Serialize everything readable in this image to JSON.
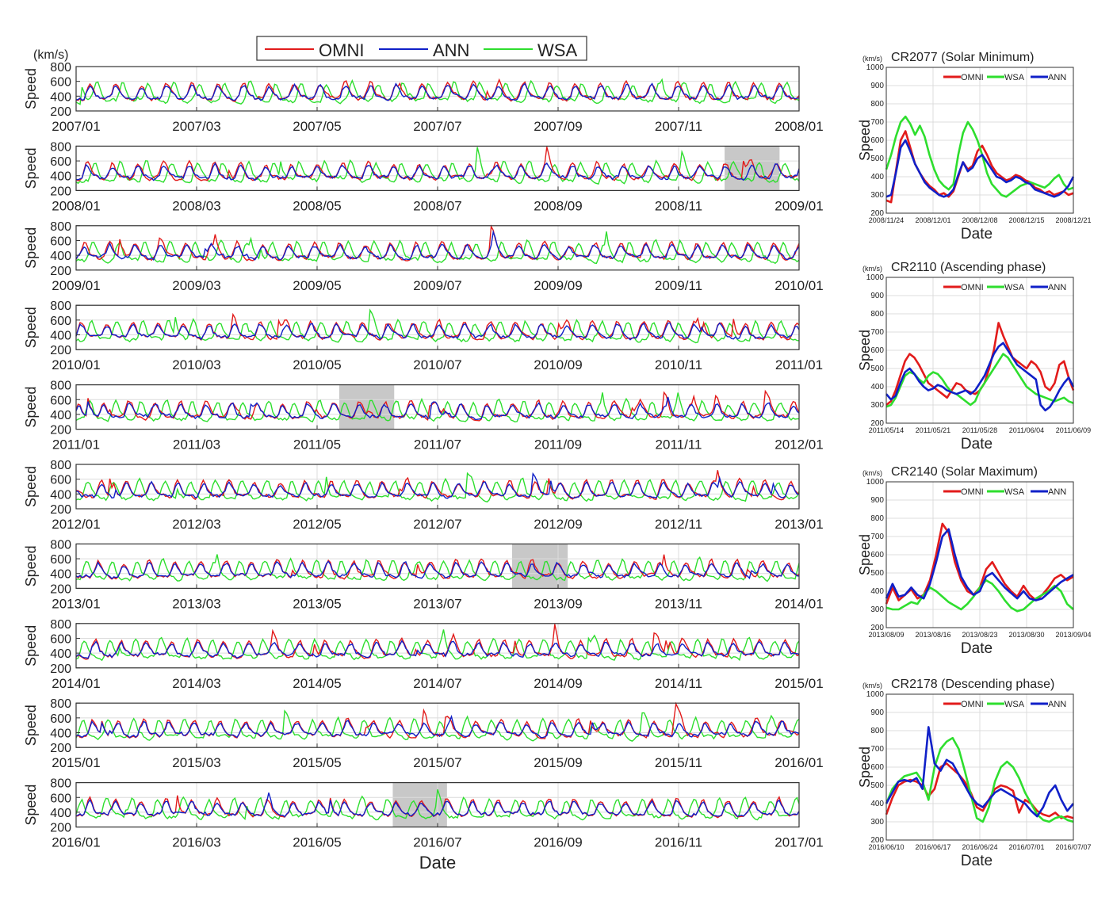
{
  "colors": {
    "OMNI": "#e21b1b",
    "ANN": "#1020c8",
    "WSA": "#2ede2e",
    "shade": "#c8c8c8",
    "grid": "#dcdcdc"
  },
  "legend_main": [
    "OMNI",
    "ANN",
    "WSA"
  ],
  "legend_side": [
    "OMNI",
    "WSA",
    "ANN"
  ],
  "main_unit": "(km/s)",
  "side_unit": "(km/s)",
  "main_ylabel": "Speed",
  "main_xlabel": "Date",
  "side_ylabel": "Speed",
  "side_xlabel": "Date",
  "chart_data": [
    {
      "type": "line",
      "panel": "main",
      "years": [
        "2007",
        "2008",
        "2009",
        "2010",
        "2011",
        "2012",
        "2013",
        "2014",
        "2015",
        "2016"
      ],
      "month_ticks": [
        "01",
        "03",
        "05",
        "07",
        "09",
        "11"
      ],
      "xlabel": "Date",
      "ylabel": "Speed",
      "unit": "(km/s)",
      "ylim": [
        200,
        800
      ],
      "yticks": [
        200,
        400,
        600,
        800
      ],
      "grid": true,
      "legend": "top-center",
      "series": [
        {
          "name": "OMNI",
          "values_note": "daily solar wind speed, km/s"
        },
        {
          "name": "ANN"
        },
        {
          "name": "WSA"
        }
      ],
      "shaded_intervals": [
        {
          "start": "2008/11/24",
          "end": "2008/12/21"
        },
        {
          "start": "2011/05/14",
          "end": "2011/06/10"
        },
        {
          "start": "2013/08/09",
          "end": "2013/09/05"
        },
        {
          "start": "2016/06/10",
          "end": "2016/07/07"
        }
      ]
    },
    {
      "type": "line",
      "title": "CR2077  (Solar Minimum)",
      "xticks": [
        "2008/11/24",
        "2008/12/01",
        "2008/12/08",
        "2008/12/15",
        "2008/12/21"
      ],
      "xlabel": "Date",
      "ylabel": "Speed",
      "unit": "(km/s)",
      "ylim": [
        200,
        1000
      ],
      "yticks": [
        200,
        300,
        400,
        500,
        600,
        700,
        800,
        900,
        1000
      ],
      "legend": "top-right",
      "series": [
        {
          "name": "OMNI",
          "values": [
            270,
            260,
            430,
            600,
            650,
            560,
            470,
            420,
            380,
            350,
            330,
            300,
            310,
            290,
            320,
            400,
            480,
            440,
            460,
            540,
            570,
            520,
            460,
            420,
            400,
            380,
            390,
            410,
            400,
            380,
            370,
            340,
            330,
            310,
            320,
            300,
            310,
            320,
            300,
            310
          ]
        },
        {
          "name": "WSA",
          "values": [
            440,
            520,
            620,
            700,
            730,
            690,
            630,
            680,
            620,
            520,
            440,
            380,
            350,
            330,
            360,
            520,
            640,
            700,
            660,
            600,
            520,
            420,
            360,
            330,
            300,
            290,
            310,
            330,
            350,
            360,
            370,
            360,
            350,
            340,
            360,
            390,
            410,
            360,
            330,
            340
          ]
        },
        {
          "name": "ANN",
          "values": [
            290,
            300,
            420,
            560,
            600,
            540,
            470,
            420,
            370,
            340,
            320,
            300,
            290,
            300,
            330,
            410,
            480,
            430,
            450,
            500,
            520,
            480,
            440,
            400,
            390,
            370,
            380,
            400,
            390,
            370,
            360,
            330,
            320,
            310,
            300,
            290,
            300,
            320,
            350,
            400
          ]
        }
      ]
    },
    {
      "type": "line",
      "title": "CR2110  (Ascending phase)",
      "xticks": [
        "2011/05/14",
        "2011/05/21",
        "2011/05/28",
        "2011/06/04",
        "2011/06/09"
      ],
      "xlabel": "Date",
      "ylabel": "Speed",
      "unit": "(km/s)",
      "ylim": [
        200,
        1000
      ],
      "yticks": [
        200,
        300,
        400,
        500,
        600,
        700,
        800,
        900,
        1000
      ],
      "legend": "top-right",
      "series": [
        {
          "name": "OMNI",
          "values": [
            300,
            320,
            380,
            460,
            540,
            580,
            560,
            520,
            470,
            420,
            400,
            380,
            360,
            340,
            380,
            420,
            410,
            380,
            370,
            360,
            380,
            420,
            500,
            600,
            750,
            680,
            620,
            560,
            540,
            520,
            500,
            540,
            520,
            480,
            400,
            380,
            420,
            520,
            540,
            450,
            380
          ]
        },
        {
          "name": "WSA",
          "values": [
            290,
            300,
            340,
            400,
            460,
            480,
            470,
            440,
            420,
            460,
            480,
            470,
            440,
            400,
            370,
            360,
            340,
            320,
            300,
            320,
            380,
            420,
            460,
            500,
            540,
            580,
            560,
            520,
            480,
            440,
            400,
            380,
            360,
            350,
            340,
            330,
            320,
            330,
            340,
            320,
            310
          ]
        },
        {
          "name": "ANN",
          "values": [
            360,
            330,
            350,
            420,
            480,
            500,
            470,
            430,
            400,
            380,
            390,
            410,
            400,
            380,
            370,
            360,
            370,
            380,
            360,
            380,
            420,
            460,
            520,
            580,
            620,
            640,
            600,
            560,
            520,
            500,
            480,
            460,
            440,
            300,
            270,
            290,
            330,
            380,
            420,
            450,
            400
          ]
        }
      ]
    },
    {
      "type": "line",
      "title": "CR2140  (Solar Maximum)",
      "xticks": [
        "2013/08/09",
        "2013/08/16",
        "2013/08/23",
        "2013/08/30",
        "2013/09/04"
      ],
      "xlabel": "Date",
      "ylabel": "Speed",
      "unit": "(km/s)",
      "ylim": [
        200,
        1000
      ],
      "yticks": [
        200,
        300,
        400,
        500,
        600,
        700,
        800,
        900,
        1000
      ],
      "legend": "top-right",
      "series": [
        {
          "name": "OMNI",
          "values": [
            330,
            420,
            350,
            380,
            410,
            360,
            380,
            460,
            600,
            770,
            720,
            560,
            460,
            400,
            380,
            420,
            520,
            560,
            500,
            440,
            400,
            370,
            430,
            380,
            350,
            380,
            420,
            470,
            490,
            460,
            480
          ]
        },
        {
          "name": "WSA",
          "values": [
            310,
            300,
            300,
            320,
            340,
            330,
            380,
            420,
            400,
            370,
            340,
            320,
            300,
            330,
            370,
            420,
            460,
            440,
            400,
            350,
            310,
            290,
            300,
            330,
            360,
            380,
            400,
            430,
            400,
            330,
            300
          ]
        },
        {
          "name": "ANN",
          "values": [
            360,
            440,
            370,
            380,
            420,
            380,
            360,
            440,
            560,
            700,
            740,
            600,
            480,
            420,
            380,
            400,
            480,
            500,
            460,
            420,
            390,
            360,
            400,
            360,
            350,
            360,
            390,
            420,
            450,
            470,
            490
          ]
        }
      ]
    },
    {
      "type": "line",
      "title": "CR2178  (Descending phase)",
      "xticks": [
        "2016/06/10",
        "2016/06/17",
        "2016/06/24",
        "2016/07/01",
        "2016/07/07"
      ],
      "xlabel": "Date",
      "ylabel": "Speed",
      "unit": "(km/s)",
      "ylim": [
        200,
        1000
      ],
      "yticks": [
        200,
        300,
        400,
        500,
        600,
        700,
        800,
        900,
        1000
      ],
      "legend": "top-right",
      "series": [
        {
          "name": "OMNI",
          "values": [
            340,
            430,
            500,
            520,
            530,
            520,
            500,
            440,
            480,
            600,
            620,
            590,
            560,
            520,
            460,
            380,
            360,
            420,
            480,
            500,
            490,
            470,
            350,
            420,
            400,
            360,
            340,
            330,
            350,
            320,
            330,
            320
          ]
        },
        {
          "name": "WSA",
          "values": [
            400,
            480,
            520,
            550,
            560,
            570,
            520,
            420,
            600,
            700,
            740,
            760,
            700,
            580,
            450,
            320,
            300,
            380,
            520,
            600,
            630,
            600,
            540,
            460,
            400,
            340,
            310,
            300,
            320,
            330,
            310,
            300
          ]
        },
        {
          "name": "ANN",
          "values": [
            400,
            460,
            520,
            530,
            520,
            540,
            480,
            820,
            620,
            580,
            640,
            620,
            560,
            500,
            440,
            400,
            380,
            420,
            460,
            480,
            460,
            440,
            420,
            400,
            360,
            330,
            380,
            460,
            500,
            420,
            360,
            400
          ]
        }
      ]
    }
  ]
}
